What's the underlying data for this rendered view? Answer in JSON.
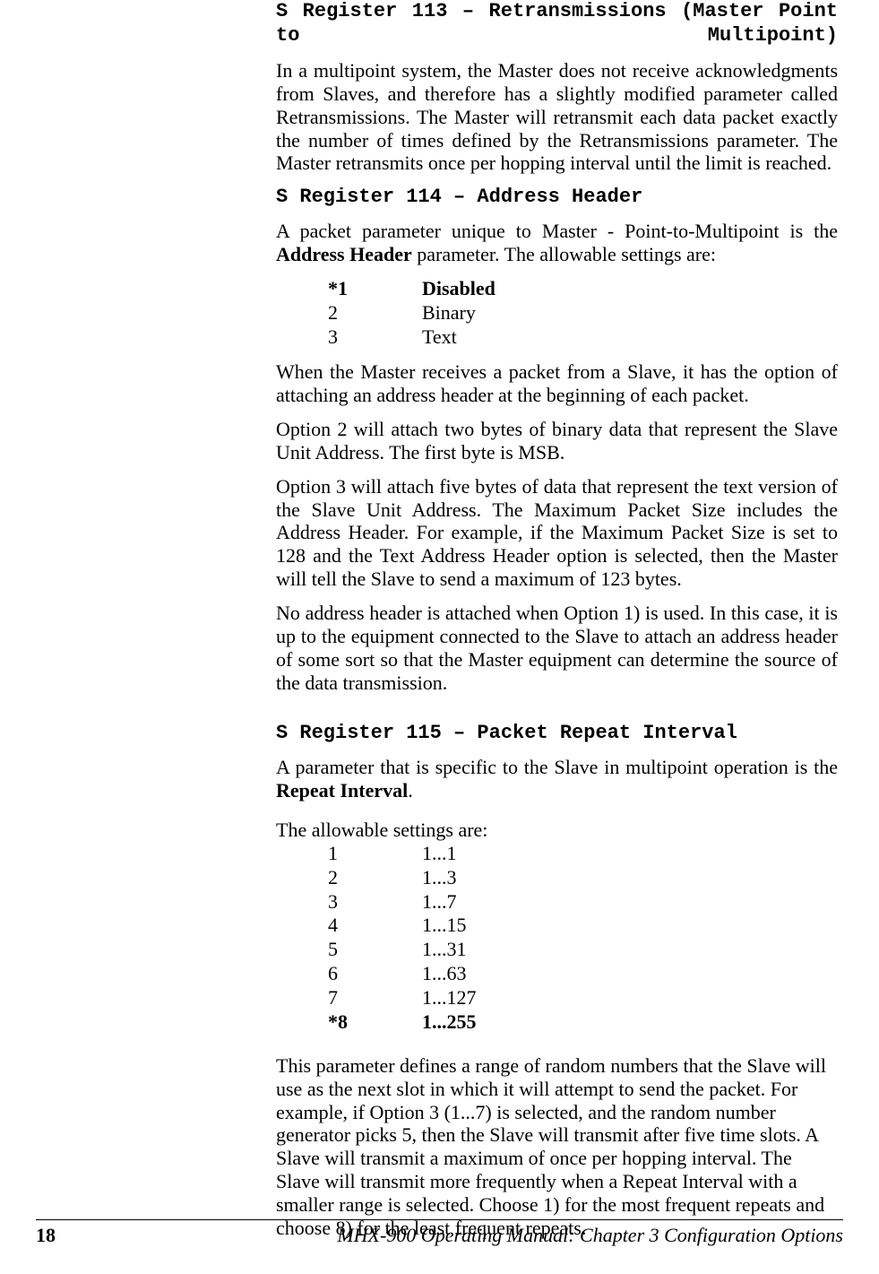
{
  "s113": {
    "heading": "S Register 113 – Retransmissions (Master Point to Multipoint)",
    "p1": "In a multipoint system, the Master does not receive acknowledgments  from Slaves, and therefore has a slightly modified parameter called Retransmissions.  The Master will retransmit each data packet exactly the number of times defined by the Retransmissions parameter.  The Master retransmits once per hopping interval until the limit is reached."
  },
  "s114": {
    "heading": "S Register 114 – Address Header",
    "p1_a": "A packet parameter unique to Master - Point-to-Multipoint is the ",
    "p1_b": "Address Header",
    "p1_c": " parameter.  The allowable settings are:",
    "settings": [
      {
        "key": "*1",
        "val": "Disabled",
        "bold": true
      },
      {
        "key": "2",
        "val": "Binary",
        "bold": false
      },
      {
        "key": "3",
        "val": "Text",
        "bold": false
      }
    ],
    "p2": "When the Master receives a packet from a Slave, it has the option of attaching an address header at the beginning of each packet.",
    "p3": "Option 2 will attach two bytes of binary data that represent the Slave Unit Address.  The first byte is MSB.",
    "p4": "Option 3 will attach five bytes of data that represent the text version of the Slave Unit Address.  The Maximum Packet Size includes the Address Header.  For example, if the Maximum Packet Size is set to 128 and the Text Address Header option is selected, then the Master will tell the Slave to send a maximum of 123 bytes.",
    "p5": "No address header is attached when Option 1) is used.  In this case, it is up to the equipment connected to the Slave to attach an address header of some sort so that the Master equipment can determine the source of the data transmission."
  },
  "s115": {
    "heading": "S Register 115  –  Packet Repeat Interval",
    "p1_a": "A parameter that is specific to the Slave in multipoint operation is the ",
    "p1_b": "Repeat Interval",
    "p1_c": ".",
    "intro": "The allowable settings are:",
    "settings": [
      {
        "key": "1",
        "val": "1...1",
        "bold": false
      },
      {
        "key": "2",
        "val": "1...3",
        "bold": false
      },
      {
        "key": "3",
        "val": "1...7",
        "bold": false
      },
      {
        "key": "4",
        "val": "1...15",
        "bold": false
      },
      {
        "key": "5",
        "val": "1...31",
        "bold": false
      },
      {
        "key": "6",
        "val": "1...63",
        "bold": false
      },
      {
        "key": "7",
        "val": "1...127",
        "bold": false
      },
      {
        "key": "*8",
        "val": "1...255",
        "bold": true
      }
    ],
    "p2": "This parameter defines a range of random numbers that the Slave will use as the next slot in which it will attempt to send the packet.  For example, if Option 3 (1...7) is selected, and the random number generator picks 5, then the Slave will transmit after five time slots.  A Slave will transmit a maximum of once per hopping interval.  The Slave will transmit more frequently when a Repeat Interval with a smaller range is selected.  Choose 1) for the most frequent repeats and choose 8) for the least frequent repeats."
  },
  "footer": {
    "page": "18",
    "title": "MHX-900 Operating Manual: Chapter 3 Configuration Options"
  }
}
